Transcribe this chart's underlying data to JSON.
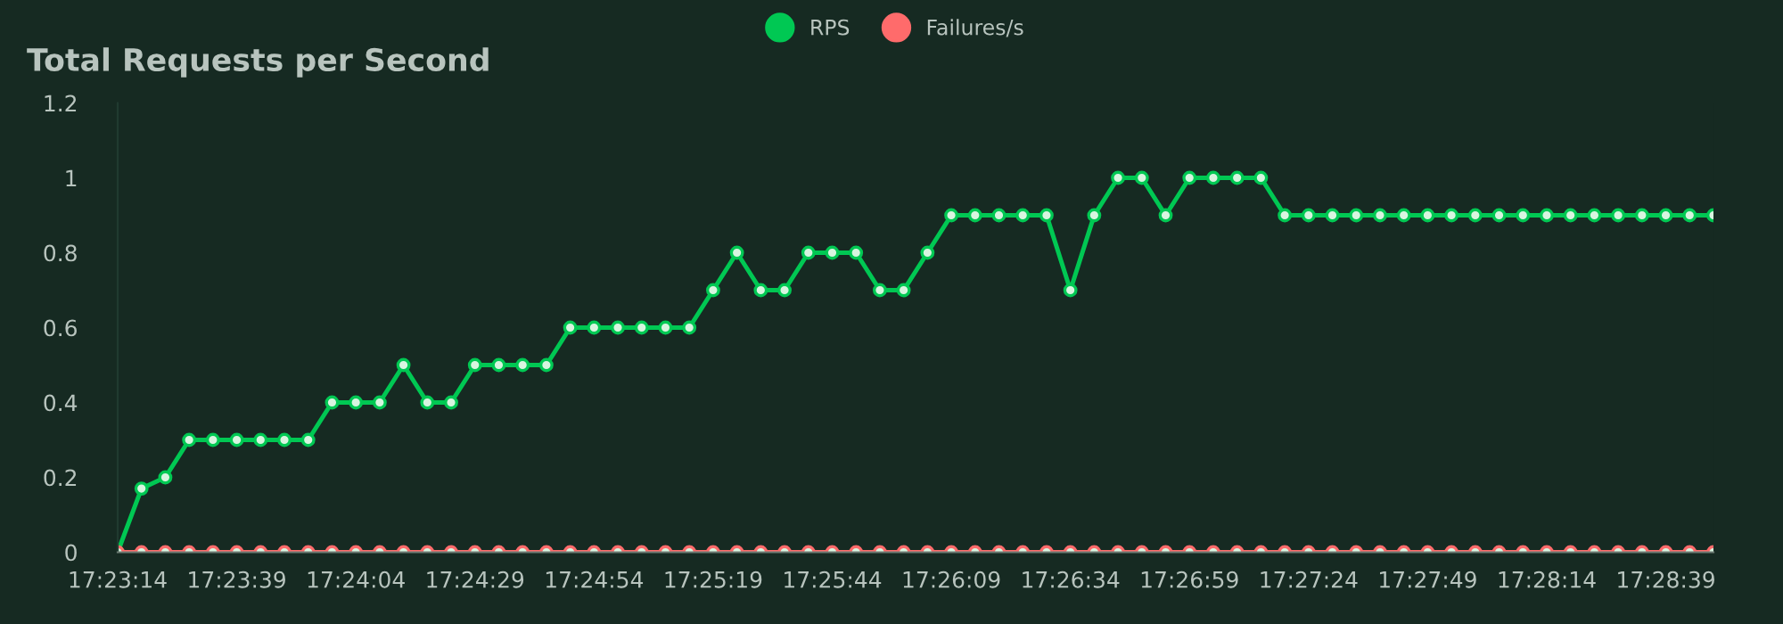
{
  "chart_data": {
    "type": "line",
    "title": "Total Requests per Second",
    "categories": [
      "17:23:14",
      null,
      null,
      null,
      null,
      "17:23:39",
      null,
      null,
      null,
      null,
      "17:24:04",
      null,
      null,
      null,
      null,
      "17:24:29",
      null,
      null,
      null,
      null,
      "17:24:54",
      null,
      null,
      null,
      null,
      "17:25:19",
      null,
      null,
      null,
      null,
      "17:25:44",
      null,
      null,
      null,
      null,
      "17:26:09",
      null,
      null,
      null,
      null,
      "17:26:34",
      null,
      null,
      null,
      null,
      "17:26:59",
      null,
      null,
      null,
      null,
      "17:27:24",
      null,
      null,
      null,
      null,
      "17:27:49",
      null,
      null,
      null,
      null,
      "17:28:14",
      null,
      null,
      null,
      null,
      "17:28:39",
      null,
      null
    ],
    "series": [
      {
        "name": "RPS",
        "color": "#00c853",
        "values": [
          0,
          0.17,
          0.2,
          0.3,
          0.3,
          0.3,
          0.3,
          0.3,
          0.3,
          0.4,
          0.4,
          0.4,
          0.5,
          0.4,
          0.4,
          0.5,
          0.5,
          0.5,
          0.5,
          0.6,
          0.6,
          0.6,
          0.6,
          0.6,
          0.6,
          0.7,
          0.8,
          0.7,
          0.7,
          0.8,
          0.8,
          0.8,
          0.7,
          0.7,
          0.8,
          0.9,
          0.9,
          0.9,
          0.9,
          0.9,
          0.7,
          0.9,
          1,
          1,
          0.9,
          1,
          1,
          1,
          1,
          0.9,
          0.9,
          0.9,
          0.9,
          0.9,
          0.9,
          0.9,
          0.9,
          0.9,
          0.9,
          0.9,
          0.9,
          0.9,
          0.9,
          0.9,
          0.9,
          0.9,
          0.9,
          0.9
        ]
      },
      {
        "name": "Failures/s",
        "color": "#ff6b6b",
        "values": [
          0,
          0,
          0,
          0,
          0,
          0,
          0,
          0,
          0,
          0,
          0,
          0,
          0,
          0,
          0,
          0,
          0,
          0,
          0,
          0,
          0,
          0,
          0,
          0,
          0,
          0,
          0,
          0,
          0,
          0,
          0,
          0,
          0,
          0,
          0,
          0,
          0,
          0,
          0,
          0,
          0,
          0,
          0,
          0,
          0,
          0,
          0,
          0,
          0,
          0,
          0,
          0,
          0,
          0,
          0,
          0,
          0,
          0,
          0,
          0,
          0,
          0,
          0,
          0,
          0,
          0,
          0,
          0
        ]
      }
    ],
    "ylim": [
      0,
      1.2
    ],
    "yticks": [
      0,
      0.2,
      0.4,
      0.6,
      0.8,
      1,
      1.2
    ],
    "grid": false,
    "legend": "top",
    "marker": "circle",
    "line_style": "solid"
  }
}
